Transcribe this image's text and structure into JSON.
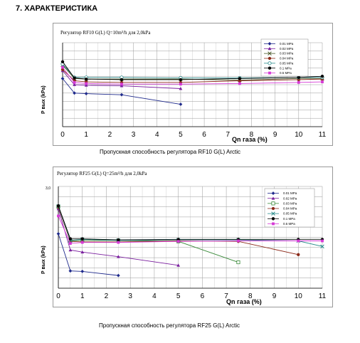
{
  "section_title": "7. ХАРАКТЕРИСТИКА",
  "chart_data": [
    {
      "type": "line",
      "title": "Регулятор RF10 G(L) Q=10m³/h для 2,0kPa",
      "ylabel": "P вых (kPa)",
      "xlabel": "Qn газа (%)",
      "xlim": [
        0,
        11
      ],
      "x_ticks": [
        "0",
        "1",
        "2",
        "3",
        "4",
        "5",
        "6",
        "7",
        "8",
        "9",
        "10",
        "11"
      ],
      "y_tick_labels": [],
      "grid": true,
      "legend_position": "top-right",
      "caption": "Пропускная способность регулятора RF10 G(L) Arctic",
      "series": [
        {
          "name": "0.01 MPa",
          "color": "#1f2a8c",
          "marker": "diamond",
          "x": [
            0,
            0.5,
            1,
            2.5,
            5
          ],
          "y": [
            2.16,
            1.9,
            1.89,
            1.87,
            1.7
          ]
        },
        {
          "name": "0.02 MPa",
          "color": "#7a1f9e",
          "marker": "triangle",
          "x": [
            0,
            0.5,
            1,
            2.5,
            5
          ],
          "y": [
            2.3,
            2.05,
            2.04,
            2.03,
            1.98
          ]
        },
        {
          "name": "0.03 MPa",
          "color": "#4a5a2a",
          "marker": "x",
          "x": [
            0,
            0.5,
            1,
            2.5,
            5,
            7.5,
            10,
            11
          ],
          "y": [
            2.4,
            2.16,
            2.15,
            2.15,
            2.15,
            2.13,
            2.16,
            2.16
          ]
        },
        {
          "name": "0.04 MPa",
          "color": "#8c2a1a",
          "marker": "circle",
          "x": [
            0,
            0.5,
            1,
            2.5,
            5,
            7.5,
            10,
            11
          ],
          "y": [
            2.32,
            2.12,
            2.1,
            2.09,
            2.09,
            2.12,
            2.14,
            2.15
          ]
        },
        {
          "name": "0.05 MPa",
          "color": "#2a8c8c",
          "marker": "circle-open",
          "x": [
            0,
            0.5,
            1,
            2.5,
            5,
            7.5,
            10,
            11
          ],
          "y": [
            2.42,
            2.18,
            2.18,
            2.18,
            2.17,
            2.17,
            2.18,
            2.18
          ]
        },
        {
          "name": "0.1 MPa",
          "color": "#000000",
          "marker": "circle",
          "x": [
            0,
            0.5,
            1,
            2.5,
            5,
            7.5,
            10,
            11
          ],
          "y": [
            2.46,
            2.17,
            2.15,
            2.14,
            2.14,
            2.16,
            2.18,
            2.2
          ]
        },
        {
          "name": "0.5 MPa",
          "color": "#d63ad6",
          "marker": "square",
          "x": [
            0,
            0.5,
            1,
            2.5,
            5,
            7.5,
            10,
            11
          ],
          "y": [
            2.36,
            2.09,
            2.07,
            2.06,
            2.06,
            2.07,
            2.09,
            2.1
          ]
        }
      ]
    },
    {
      "type": "line",
      "title": "Регулятор RF25 G(L) Q=25m³/h для 2,0kPa",
      "ylabel": "P вых (kPa)",
      "xlabel": "Qn газа (%)",
      "xlim": [
        0,
        11
      ],
      "ylim": [
        1.0,
        3.0
      ],
      "x_ticks": [
        "0",
        "1",
        "2",
        "3",
        "4",
        "5",
        "6",
        "7",
        "8",
        "9",
        "10",
        "11"
      ],
      "y_tick_labels": [
        "3,0"
      ],
      "grid": true,
      "legend_position": "top-right",
      "caption": "Пропускная способность регулятора RF25 G(L) Arctic",
      "series": [
        {
          "name": "0.01 MPa",
          "color": "#1f2a8c",
          "marker": "diamond",
          "x": [
            0,
            0.5,
            1,
            2.5
          ],
          "y": [
            2.07,
            1.34,
            1.33,
            1.25
          ]
        },
        {
          "name": "0.02 MPa",
          "color": "#7a1f9e",
          "marker": "triangle",
          "x": [
            0,
            0.5,
            1,
            2.5,
            5
          ],
          "y": [
            2.56,
            1.75,
            1.71,
            1.62,
            1.45
          ]
        },
        {
          "name": "0.03 MPa",
          "color": "#3a8a3a",
          "marker": "square-open",
          "x": [
            0,
            0.5,
            1,
            2.5,
            5,
            7.5
          ],
          "y": [
            2.6,
            1.93,
            1.94,
            1.94,
            1.92,
            1.51
          ]
        },
        {
          "name": "0.04 MPa",
          "color": "#8c2a1a",
          "marker": "circle",
          "x": [
            0,
            0.5,
            1,
            2.5,
            5,
            7.5,
            10
          ],
          "y": [
            2.59,
            1.92,
            1.91,
            1.91,
            1.93,
            1.92,
            1.66
          ]
        },
        {
          "name": "0.05 MPa",
          "color": "#2a8c8c",
          "marker": "x",
          "x": [
            0,
            0.5,
            1,
            2.5,
            5,
            7.5,
            10,
            11
          ],
          "y": [
            2.61,
            1.94,
            1.96,
            1.94,
            1.95,
            1.95,
            1.93,
            1.82
          ]
        },
        {
          "name": "0.1 MPa",
          "color": "#000000",
          "marker": "circle",
          "x": [
            0,
            0.5,
            1,
            2.5,
            5,
            7.5,
            10,
            11
          ],
          "y": [
            2.62,
            1.97,
            1.97,
            1.95,
            1.96,
            1.96,
            1.96,
            1.96
          ]
        },
        {
          "name": "0.5 MPa",
          "color": "#d63ad6",
          "marker": "square",
          "x": [
            0,
            0.5,
            1,
            2.5,
            5,
            7.5,
            10,
            11
          ],
          "y": [
            2.42,
            1.88,
            1.9,
            1.9,
            1.92,
            1.93,
            1.93,
            1.93
          ]
        }
      ]
    }
  ]
}
